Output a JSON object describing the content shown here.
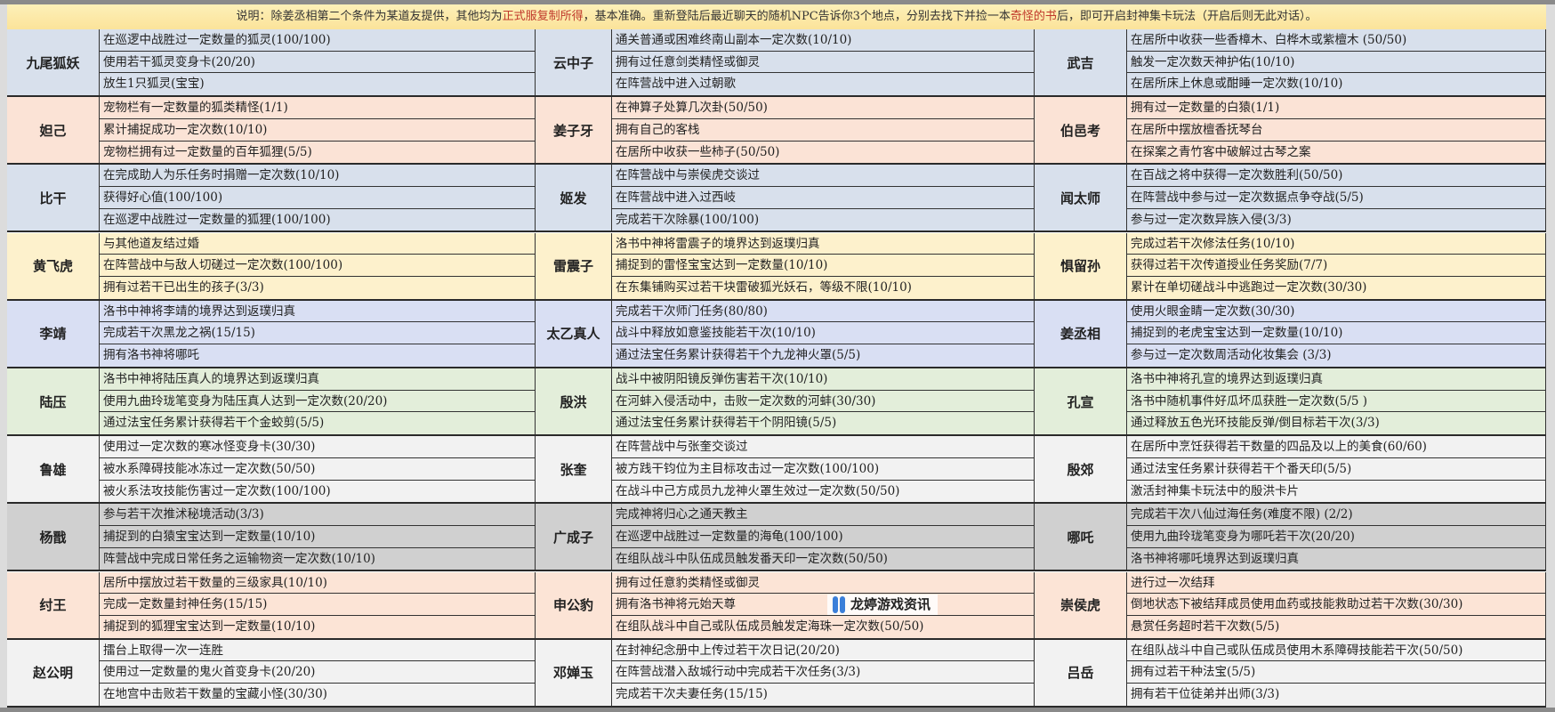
{
  "notice": {
    "part1": "说明：除姜丞相第二个条件为某道友提供，其他均为",
    "red1": "正式服复制所得",
    "part2": "，基本准确。重新登陆后最近聊天的随机NPC告诉你3个地点，分别去找下并捡一本",
    "red2": "奇怪的书",
    "part3": "后，即可开启封神集卡玩法（开启后则无此对话）。",
    "highlight_color": "#c0392b"
  },
  "rows": [
    {
      "color": "#d8e0ec",
      "cells": [
        {
          "name": "九尾狐妖",
          "tasks": [
            "在巡逻中战胜过一定数量的狐灵(100/100)",
            "使用若干狐灵变身卡(20/20)",
            "放生1只狐灵(宝宝)"
          ]
        },
        {
          "name": "云中子",
          "tasks": [
            "通关普通或困难终南山副本一定次数(10/10)",
            "拥有过任意剑类精怪或御灵",
            "在阵营战中进入过朝歌"
          ]
        },
        {
          "name": "武吉",
          "tasks": [
            "在居所中收获一些香樟木、白桦木或紫檀木 (50/50)",
            "触发一定次数天神护佑(10/10)",
            "在居所床上休息或酣睡一定次数(10/10)"
          ]
        }
      ]
    },
    {
      "color": "#fbe3d6",
      "cells": [
        {
          "name": "妲己",
          "tasks": [
            "宠物栏有一定数量的狐类精怪(1/1)",
            "累计捕捉成功一定次数(10/10)",
            "宠物栏拥有过一定数量的百年狐狸(5/5)"
          ]
        },
        {
          "name": "姜子牙",
          "tasks": [
            "在神算子处算几次卦(50/50)",
            "拥有自己的客栈",
            "在居所中收获一些柿子(50/50)"
          ]
        },
        {
          "name": "伯邑考",
          "tasks": [
            "拥有过一定数量的白猿(1/1)",
            "在居所中摆放檀香抚琴台",
            "在探案之青竹客中破解过古琴之案"
          ]
        }
      ]
    },
    {
      "color": "#d8e0ec",
      "cells": [
        {
          "name": "比干",
          "tasks": [
            "在完成助人为乐任务时捐赠一定次数(10/10)",
            "获得好心值(100/100)",
            "在巡逻中战胜过一定数量的狐狸(100/100)"
          ]
        },
        {
          "name": "姬发",
          "tasks": [
            "在阵营战中与崇侯虎交谈过",
            "在阵营战中进入过西岐",
            "完成若干次除暴(100/100)"
          ]
        },
        {
          "name": "闻太师",
          "tasks": [
            "在百战之将中获得一定次数胜利(50/50)",
            "在阵营战中参与过一定次数据点争夺战(5/5)",
            "参与过一定次数异族入侵(3/3)"
          ]
        }
      ]
    },
    {
      "color": "#fdf1cc",
      "cells": [
        {
          "name": "黄飞虎",
          "tasks": [
            "与其他道友结过婚",
            "在阵营战中与敌人切磋过一定次数(100/100)",
            "拥有过若干已出生的孩子(3/3)"
          ]
        },
        {
          "name": "雷震子",
          "tasks": [
            "洛书中神将雷震子的境界达到返璞归真",
            "捕捉到的雷怪宝宝达到一定数量(10/10)",
            "在东集铺购买过若干块雷破狐光妖石，等级不限(10/10)"
          ]
        },
        {
          "name": "惧留孙",
          "tasks": [
            "完成过若干次修法任务(10/10)",
            "获得过若干次传道授业任务奖励(7/7)",
            "累计在单切磋战斗中逃跑过一定次数(30/30)"
          ]
        }
      ]
    },
    {
      "color": "#d9dff3",
      "cells": [
        {
          "name": "李靖",
          "tasks": [
            "洛书中神将李靖的境界达到返璞归真",
            "完成若干次黑龙之祸(15/15)",
            "拥有洛书神将哪吒"
          ]
        },
        {
          "name": "太乙真人",
          "tasks": [
            "完成若干次师门任务(80/80)",
            "战斗中释放如意鉴技能若干次(10/10)",
            "通过法宝任务累计获得若干个九龙神火罩(5/5)"
          ]
        },
        {
          "name": "姜丞相",
          "tasks": [
            "使用火眼金睛一定次数(30/30)",
            "捕捉到的老虎宝宝达到一定数量(10/10)",
            "参与过一定次数周活动化妆集会 (3/3)"
          ]
        }
      ]
    },
    {
      "color": "#e3eeda",
      "cells": [
        {
          "name": "陆压",
          "tasks": [
            "洛书中神将陆压真人的境界达到返璞归真",
            "使用九曲玲珑笔变身为陆压真人达到一定次数(20/20)",
            "通过法宝任务累计获得若干个金蛟剪(5/5)"
          ]
        },
        {
          "name": "殷洪",
          "tasks": [
            "战斗中被阴阳镜反弹伤害若干次(10/10)",
            "在河蚌入侵活动中，击败一定次数的河蚌(30/30)",
            "通过法宝任务累计获得若干个阴阳镜(5/5)"
          ]
        },
        {
          "name": "孔宣",
          "tasks": [
            "洛书中神将孔宣的境界达到返璞归真",
            "洛书中随机事件好瓜坏瓜获胜一定次数(5/5 )",
            "通过释放五色光环技能反弹/倒目标若干次(3/3)"
          ]
        }
      ]
    },
    {
      "color": "#f2f2f2",
      "cells": [
        {
          "name": "鲁雄",
          "tasks": [
            "使用过一定次数的寒冰怪变身卡(30/30)",
            "被水系障碍技能冰冻过一定次数(50/50)",
            "被火系法攻技能伤害过一定次数(100/100)"
          ]
        },
        {
          "name": "张奎",
          "tasks": [
            "在阵营战中与张奎交谈过",
            "被方践干钧位为主目标攻击过一定次数(100/100)",
            "在战斗中己方成员九龙神火罩生效过一定次数(50/50)"
          ]
        },
        {
          "name": "殷郊",
          "tasks": [
            "在居所中烹饪获得若干数量的四品及以上的美食(60/60)",
            "通过法宝任务累计获得若干个番天印(5/5)",
            "激活封神集卡玩法中的殷洪卡片"
          ]
        }
      ]
    },
    {
      "color": "#d0d0d0",
      "cells": [
        {
          "name": "杨戬",
          "tasks": [
            "参与若干次推沭秘境活动(3/3)",
            "捕捉到的白猿宝宝达到一定数量(10/10)",
            "阵营战中完成日常任务之运输物资一定次数(10/10)"
          ]
        },
        {
          "name": "广成子",
          "tasks": [
            "完成神将归心之通天教主",
            "在巡逻中战胜过一定数量的海龟(100/100)",
            "在组队战斗中队伍成员触发番天印一定次数(50/50)"
          ]
        },
        {
          "name": "哪吒",
          "tasks": [
            "完成若干次八仙过海任务(难度不限) (2/2)",
            "使用九曲玲珑笔变身为哪吒若干次(20/20)",
            "洛书神将哪吒境界达到返璞归真"
          ]
        }
      ]
    },
    {
      "color": "#fce4d6",
      "cells": [
        {
          "name": "纣王",
          "tasks": [
            "居所中摆放过若干数量的三级家具(10/10)",
            "完成一定数量封神任务(15/15)",
            "捕捉到的狐狸宝宝达到一定数量(10/10)"
          ]
        },
        {
          "name": "申公豹",
          "tasks": [
            "拥有过任意豹类精怪或御灵",
            "拥有洛书神将元始天尊",
            "在组队战斗中自己或队伍成员触发定海珠一定次数(50/50)"
          ]
        },
        {
          "name": "崇侯虎",
          "tasks": [
            "进行过一次结拜",
            "倒地状态下被结拜成员使用血药或技能救助过若干次数(30/30)",
            "悬赏任务超时若干次数(5/5)"
          ]
        }
      ]
    },
    {
      "color": "#f2f2f2",
      "cells": [
        {
          "name": "赵公明",
          "tasks": [
            "擂台上取得一次一连胜",
            "使用过一定数量的鬼火首变身卡(20/20)",
            "在地宫中击败若干数量的宝藏小怪(30/30)"
          ]
        },
        {
          "name": "邓婵玉",
          "tasks": [
            "在封神纪念册中上传过若干次日记(20/20)",
            "在阵营战潜入敌城行动中完成若干次任务(3/3)",
            "完成若干次夫妻任务(15/15)"
          ]
        },
        {
          "name": "吕岳",
          "tasks": [
            "在组队战斗中自己或队伍成员使用木系障碍技能若干次(50/50)",
            "拥有过若干种法宝(5/5)",
            "拥有若干位徒弟并出师(3/3)"
          ]
        }
      ]
    }
  ],
  "watermark": {
    "text": "龙婷游戏资讯",
    "icon": "gamepad-icon"
  }
}
